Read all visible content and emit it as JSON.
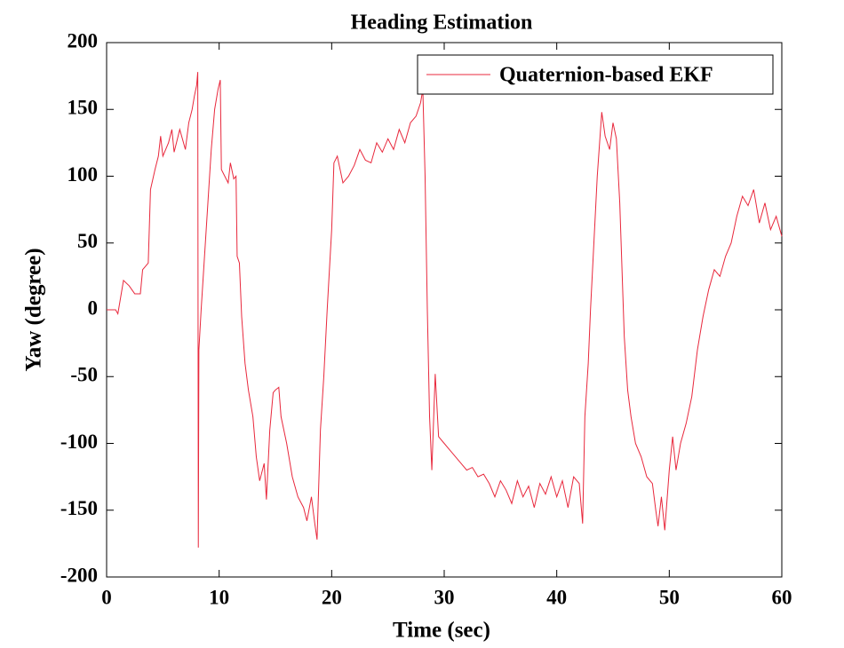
{
  "chart_data": {
    "type": "line",
    "title": "Heading Estimation",
    "x_label": "Time (sec)",
    "y_label": "Yaw (degree)",
    "xlim": [
      0,
      60
    ],
    "xticks": [
      0,
      10,
      20,
      30,
      40,
      50,
      60
    ],
    "ylim": [
      -200,
      200
    ],
    "yticks": [
      -200,
      -150,
      -100,
      -50,
      0,
      50,
      100,
      150,
      200
    ],
    "grid": false,
    "legend": "upper right",
    "series": [
      {
        "name": "Quaternion-based EKF",
        "color": "#e8283c",
        "x": [
          0,
          0.8,
          1,
          1.5,
          2,
          2.5,
          3,
          3.2,
          3.7,
          3.9,
          4.3,
          4.6,
          4.8,
          5,
          5.5,
          5.8,
          6,
          6.5,
          7,
          7.3,
          7.6,
          7.8,
          8,
          8.1,
          8.15,
          8.2,
          8.4,
          8.7,
          9,
          9.3,
          9.6,
          9.9,
          10.1,
          10.2,
          10.5,
          10.8,
          11,
          11.3,
          11.5,
          11.6,
          11.8,
          12,
          12.3,
          12.6,
          13,
          13.3,
          13.6,
          14,
          14.2,
          14.5,
          14.8,
          15,
          15.3,
          15.5,
          16,
          16.5,
          17,
          17.5,
          17.8,
          18.2,
          18.5,
          18.7,
          19,
          19.3,
          19.6,
          20,
          20.2,
          20.5,
          21,
          21.5,
          22,
          22.5,
          23,
          23.5,
          24,
          24.5,
          25,
          25.5,
          26,
          26.5,
          27,
          27.5,
          27.9,
          28.1,
          28.3,
          28.5,
          28.7,
          28.9,
          29.2,
          29.5,
          30,
          30.5,
          31,
          31.5,
          32,
          32.5,
          33,
          33.5,
          34,
          34.5,
          35,
          35.5,
          36,
          36.5,
          37,
          37.5,
          38,
          38.5,
          39,
          39.5,
          40,
          40.5,
          41,
          41.5,
          42,
          42.3,
          42.5,
          42.8,
          43,
          43.3,
          43.6,
          44,
          44.3,
          44.7,
          45,
          45.3,
          45.6,
          46,
          46.3,
          46.6,
          47,
          47.5,
          48,
          48.5,
          48.8,
          49,
          49.3,
          49.6,
          50,
          50.3,
          50.6,
          51,
          51.5,
          52,
          52.5,
          53,
          53.5,
          54,
          54.5,
          55,
          55.5,
          56,
          56.5,
          57,
          57.5,
          58,
          58.5,
          59,
          59.5,
          60
        ],
        "values": [
          0,
          0,
          -3,
          22,
          18,
          12,
          12,
          30,
          35,
          90,
          105,
          115,
          130,
          115,
          125,
          135,
          118,
          135,
          120,
          140,
          150,
          160,
          168,
          178,
          -178,
          -30,
          0,
          40,
          80,
          120,
          150,
          165,
          172,
          105,
          100,
          95,
          110,
          98,
          100,
          40,
          35,
          -5,
          -40,
          -60,
          -80,
          -110,
          -128,
          -115,
          -142,
          -90,
          -62,
          -60,
          -58,
          -80,
          -100,
          -125,
          -140,
          -148,
          -158,
          -140,
          -160,
          -172,
          -90,
          -50,
          0,
          60,
          110,
          115,
          95,
          100,
          108,
          120,
          112,
          110,
          125,
          118,
          128,
          120,
          135,
          125,
          140,
          145,
          155,
          165,
          100,
          0,
          -80,
          -120,
          -48,
          -95,
          -100,
          -105,
          -110,
          -115,
          -120,
          -118,
          -125,
          -123,
          -130,
          -140,
          -128,
          -135,
          -145,
          -128,
          -140,
          -132,
          -148,
          -130,
          -138,
          -125,
          -140,
          -128,
          -148,
          -125,
          -130,
          -160,
          -80,
          -40,
          0,
          50,
          100,
          148,
          130,
          120,
          140,
          128,
          80,
          -20,
          -60,
          -80,
          -100,
          -110,
          -125,
          -130,
          -150,
          -162,
          -140,
          -165,
          -120,
          -95,
          -120,
          -100,
          -85,
          -65,
          -30,
          -5,
          15,
          30,
          25,
          40,
          50,
          70,
          85,
          78,
          90,
          65,
          80,
          60,
          70,
          55
        ]
      }
    ]
  }
}
